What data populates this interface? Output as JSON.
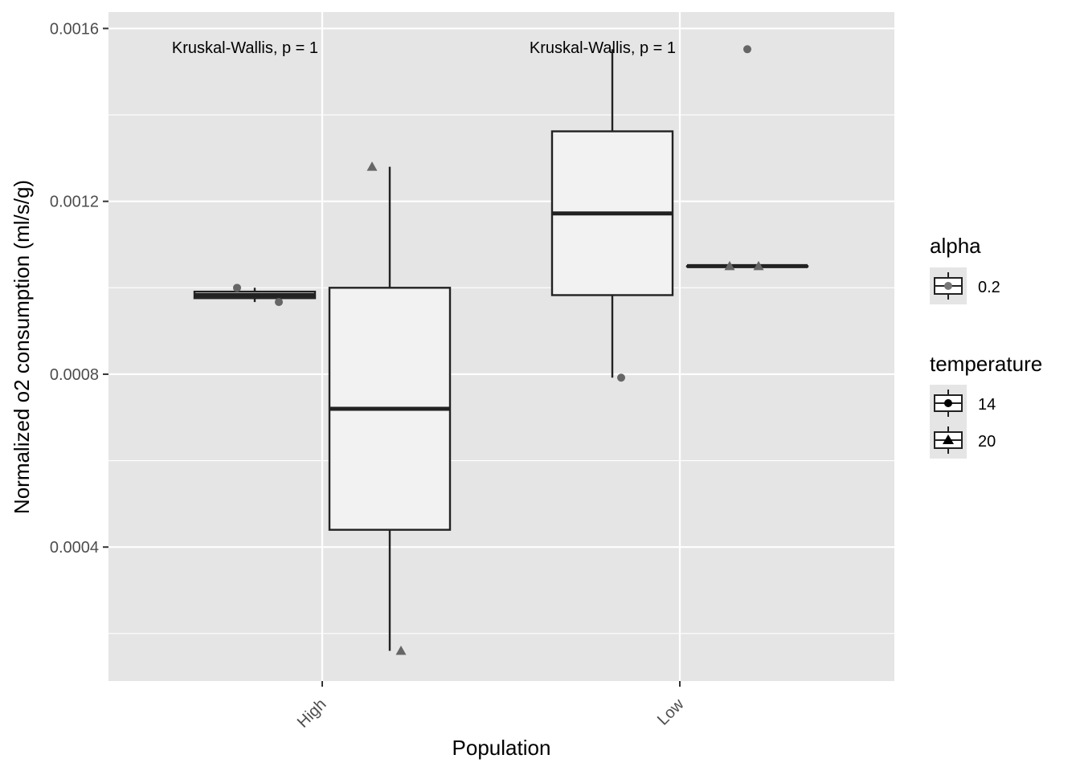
{
  "chart_data": {
    "type": "box",
    "xlabel": "Population",
    "ylabel": "Normalized o2 consumption (ml/s/g)",
    "categories": [
      "High",
      "Low"
    ],
    "ylim": [
      9e-05,
      0.001638
    ],
    "yticks": [
      0.0004,
      0.0008,
      0.0012,
      0.0016
    ],
    "ytick_labels": [
      "0.0004",
      "0.0008",
      "0.0012",
      "0.0016"
    ],
    "grid": true,
    "legend_position": "right",
    "annotations": [
      {
        "category": "High",
        "text": "Kruskal-Wallis, p = 1"
      },
      {
        "category": "Low",
        "text": "Kruskal-Wallis, p = 1"
      }
    ],
    "series": [
      {
        "temperature": "14",
        "boxes": [
          {
            "category": "High",
            "min": 0.000967,
            "q1": 0.000976,
            "median": 0.000983,
            "q3": 0.000991,
            "max": 0.001
          },
          {
            "category": "Low",
            "min": 0.000792,
            "q1": 0.000983,
            "median": 0.001172,
            "q3": 0.001362,
            "max": 0.001552
          }
        ],
        "points": [
          {
            "category": "High",
            "y": 0.001
          },
          {
            "category": "High",
            "y": 0.000967
          },
          {
            "category": "Low",
            "y": 0.000792
          },
          {
            "category": "Low",
            "y": 0.001552
          }
        ]
      },
      {
        "temperature": "20",
        "boxes": [
          {
            "category": "High",
            "min": 0.00016,
            "q1": 0.00044,
            "median": 0.00072,
            "q3": 0.001,
            "max": 0.00128
          },
          {
            "category": "Low",
            "min": 0.00105,
            "q1": 0.00105,
            "median": 0.00105,
            "q3": 0.00105,
            "max": 0.00105
          }
        ],
        "points": [
          {
            "category": "High",
            "y": 0.00128
          },
          {
            "category": "High",
            "y": 0.00016
          },
          {
            "category": "Low",
            "y": 0.00105
          },
          {
            "category": "Low",
            "y": 0.00105
          }
        ]
      }
    ],
    "legend": {
      "alpha": {
        "title": "alpha",
        "items": [
          {
            "label": "0.2",
            "shape": "circle"
          }
        ]
      },
      "temperature": {
        "title": "temperature",
        "items": [
          {
            "label": "14",
            "shape": "circle"
          },
          {
            "label": "20",
            "shape": "triangle"
          }
        ]
      }
    },
    "colors": {
      "panel": "#e5e5e5",
      "grid": "#ffffff",
      "box_fill": "#f2f2f2",
      "box_line": "#222222",
      "points": "#666666"
    }
  }
}
